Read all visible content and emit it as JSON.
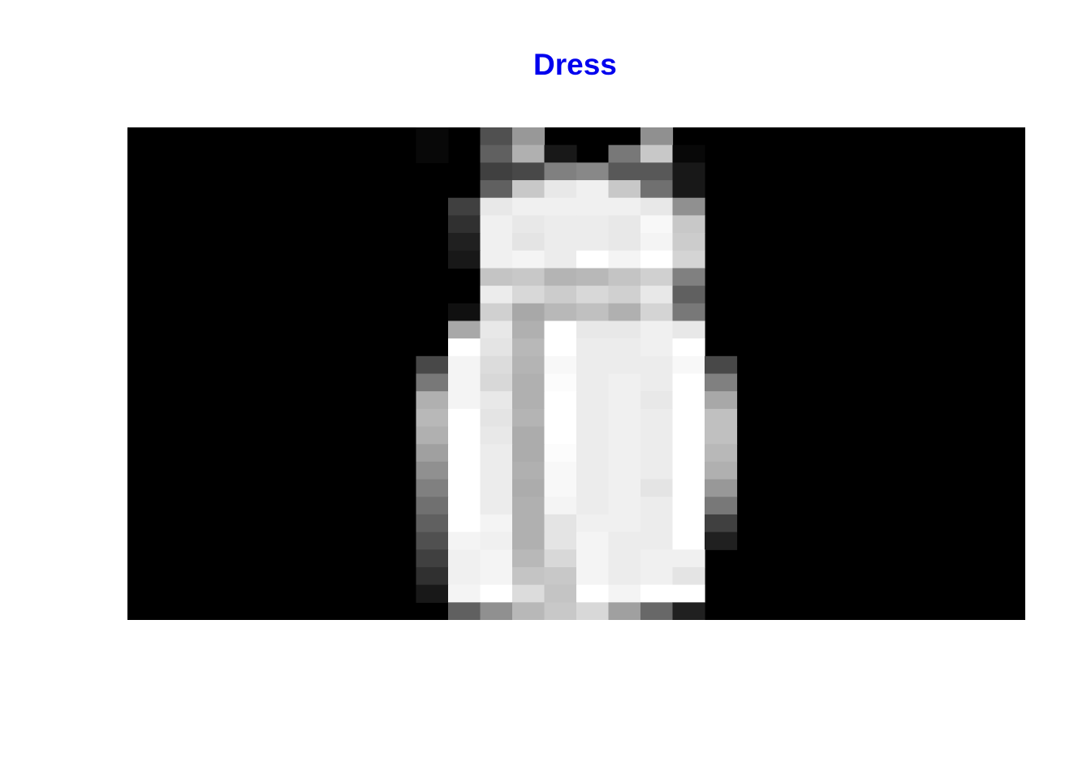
{
  "title": {
    "text": "Dress",
    "color": "#0000ee"
  },
  "image": {
    "background": "#000000",
    "grid_columns": 28,
    "grid_rows": 28,
    "pixels": [
      [
        0,
        0,
        0,
        0,
        0,
        0,
        0,
        0,
        0,
        8,
        0,
        80,
        152,
        0,
        0,
        0,
        144,
        0,
        0,
        0,
        0,
        0,
        0,
        0,
        0,
        0,
        0,
        0
      ],
      [
        0,
        0,
        0,
        0,
        0,
        0,
        0,
        0,
        0,
        8,
        0,
        96,
        176,
        24,
        0,
        120,
        200,
        8,
        0,
        0,
        0,
        0,
        0,
        0,
        0,
        0,
        0,
        0
      ],
      [
        0,
        0,
        0,
        0,
        0,
        0,
        0,
        0,
        0,
        0,
        0,
        64,
        72,
        128,
        136,
        88,
        88,
        24,
        0,
        0,
        0,
        0,
        0,
        0,
        0,
        0,
        0,
        0
      ],
      [
        0,
        0,
        0,
        0,
        0,
        0,
        0,
        0,
        0,
        0,
        0,
        96,
        200,
        232,
        240,
        200,
        112,
        24,
        0,
        0,
        0,
        0,
        0,
        0,
        0,
        0,
        0,
        0
      ],
      [
        0,
        0,
        0,
        0,
        0,
        0,
        0,
        0,
        0,
        0,
        64,
        232,
        240,
        240,
        240,
        240,
        232,
        144,
        0,
        0,
        0,
        0,
        0,
        0,
        0,
        0,
        0,
        0
      ],
      [
        0,
        0,
        0,
        0,
        0,
        0,
        0,
        0,
        0,
        0,
        48,
        240,
        232,
        236,
        236,
        232,
        248,
        200,
        0,
        0,
        0,
        0,
        0,
        0,
        0,
        0,
        0,
        0
      ],
      [
        0,
        0,
        0,
        0,
        0,
        0,
        0,
        0,
        0,
        0,
        32,
        240,
        228,
        236,
        236,
        232,
        244,
        204,
        0,
        0,
        0,
        0,
        0,
        0,
        0,
        0,
        0,
        0
      ],
      [
        0,
        0,
        0,
        0,
        0,
        0,
        0,
        0,
        0,
        0,
        24,
        240,
        244,
        236,
        255,
        244,
        255,
        212,
        0,
        0,
        0,
        0,
        0,
        0,
        0,
        0,
        0,
        0
      ],
      [
        0,
        0,
        0,
        0,
        0,
        0,
        0,
        0,
        0,
        0,
        0,
        196,
        200,
        180,
        184,
        196,
        208,
        128,
        0,
        0,
        0,
        0,
        0,
        0,
        0,
        0,
        0,
        0
      ],
      [
        0,
        0,
        0,
        0,
        0,
        0,
        0,
        0,
        0,
        0,
        0,
        236,
        216,
        204,
        216,
        208,
        232,
        96,
        0,
        0,
        0,
        0,
        0,
        0,
        0,
        0,
        0,
        0
      ],
      [
        0,
        0,
        0,
        0,
        0,
        0,
        0,
        0,
        0,
        0,
        16,
        208,
        168,
        184,
        192,
        176,
        212,
        120,
        0,
        0,
        0,
        0,
        0,
        0,
        0,
        0,
        0,
        0
      ],
      [
        0,
        0,
        0,
        0,
        0,
        0,
        0,
        0,
        0,
        0,
        168,
        232,
        176,
        255,
        232,
        232,
        240,
        232,
        0,
        0,
        0,
        0,
        0,
        0,
        0,
        0,
        0,
        0
      ],
      [
        0,
        0,
        0,
        0,
        0,
        0,
        0,
        0,
        0,
        0,
        255,
        228,
        184,
        255,
        236,
        236,
        240,
        255,
        0,
        0,
        0,
        0,
        0,
        0,
        0,
        0,
        0,
        0
      ],
      [
        0,
        0,
        0,
        0,
        0,
        0,
        0,
        0,
        0,
        72,
        244,
        220,
        180,
        248,
        236,
        236,
        236,
        248,
        72,
        0,
        0,
        0,
        0,
        0,
        0,
        0,
        0,
        0
      ],
      [
        0,
        0,
        0,
        0,
        0,
        0,
        0,
        0,
        0,
        120,
        244,
        216,
        176,
        252,
        236,
        240,
        236,
        255,
        128,
        0,
        0,
        0,
        0,
        0,
        0,
        0,
        0,
        0
      ],
      [
        0,
        0,
        0,
        0,
        0,
        0,
        0,
        0,
        0,
        176,
        244,
        232,
        176,
        255,
        236,
        240,
        232,
        255,
        168,
        0,
        0,
        0,
        0,
        0,
        0,
        0,
        0,
        0
      ],
      [
        0,
        0,
        0,
        0,
        0,
        0,
        0,
        0,
        0,
        184,
        255,
        228,
        180,
        255,
        236,
        240,
        236,
        255,
        192,
        0,
        0,
        0,
        0,
        0,
        0,
        0,
        0,
        0
      ],
      [
        0,
        0,
        0,
        0,
        0,
        0,
        0,
        0,
        0,
        176,
        255,
        232,
        172,
        255,
        236,
        240,
        236,
        255,
        192,
        0,
        0,
        0,
        0,
        0,
        0,
        0,
        0,
        0
      ],
      [
        0,
        0,
        0,
        0,
        0,
        0,
        0,
        0,
        0,
        160,
        255,
        236,
        172,
        252,
        236,
        240,
        236,
        255,
        184,
        0,
        0,
        0,
        0,
        0,
        0,
        0,
        0,
        0
      ],
      [
        0,
        0,
        0,
        0,
        0,
        0,
        0,
        0,
        0,
        144,
        255,
        236,
        176,
        248,
        236,
        240,
        236,
        255,
        176,
        0,
        0,
        0,
        0,
        0,
        0,
        0,
        0,
        0
      ],
      [
        0,
        0,
        0,
        0,
        0,
        0,
        0,
        0,
        0,
        128,
        255,
        236,
        172,
        248,
        236,
        240,
        228,
        255,
        152,
        0,
        0,
        0,
        0,
        0,
        0,
        0,
        0,
        0
      ],
      [
        0,
        0,
        0,
        0,
        0,
        0,
        0,
        0,
        0,
        112,
        255,
        236,
        176,
        244,
        236,
        240,
        236,
        255,
        120,
        0,
        0,
        0,
        0,
        0,
        0,
        0,
        0,
        0
      ],
      [
        0,
        0,
        0,
        0,
        0,
        0,
        0,
        0,
        0,
        96,
        255,
        244,
        176,
        228,
        240,
        240,
        236,
        255,
        64,
        0,
        0,
        0,
        0,
        0,
        0,
        0,
        0,
        0
      ],
      [
        0,
        0,
        0,
        0,
        0,
        0,
        0,
        0,
        0,
        80,
        244,
        240,
        176,
        228,
        244,
        236,
        236,
        255,
        32,
        0,
        0,
        0,
        0,
        0,
        0,
        0,
        0,
        0
      ],
      [
        0,
        0,
        0,
        0,
        0,
        0,
        0,
        0,
        0,
        64,
        240,
        244,
        184,
        216,
        244,
        236,
        240,
        240,
        0,
        0,
        0,
        0,
        0,
        0,
        0,
        0,
        0,
        0
      ],
      [
        0,
        0,
        0,
        0,
        0,
        0,
        0,
        0,
        0,
        48,
        240,
        244,
        196,
        200,
        244,
        236,
        240,
        228,
        0,
        0,
        0,
        0,
        0,
        0,
        0,
        0,
        0,
        0
      ],
      [
        0,
        0,
        0,
        0,
        0,
        0,
        0,
        0,
        0,
        24,
        244,
        255,
        220,
        196,
        255,
        244,
        255,
        255,
        0,
        0,
        0,
        0,
        0,
        0,
        0,
        0,
        0,
        0
      ],
      [
        0,
        0,
        0,
        0,
        0,
        0,
        0,
        0,
        0,
        0,
        96,
        144,
        184,
        200,
        216,
        160,
        104,
        32,
        0,
        0,
        0,
        0,
        0,
        0,
        0,
        0,
        0,
        0
      ]
    ]
  }
}
